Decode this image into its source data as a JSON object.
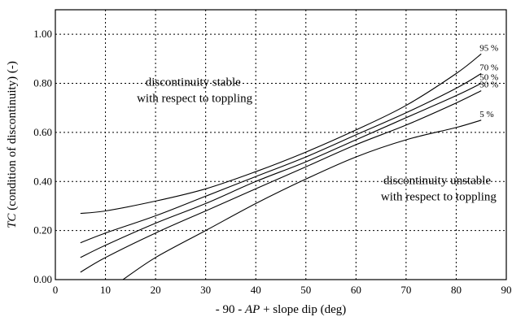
{
  "chart_data": {
    "type": "line",
    "xlabel_prefix": "- 90 - ",
    "xlabel_var": "AP",
    "xlabel_suffix": " + slope dip (deg)",
    "ylabel_var": "TC",
    "ylabel_rest": " (condition of discontinuity) (-)",
    "xlim": [
      0,
      90
    ],
    "ylim": [
      0,
      1.1
    ],
    "x_ticks": [
      0,
      10,
      20,
      30,
      40,
      50,
      60,
      70,
      80,
      90
    ],
    "x_tick_labels": [
      "0",
      "10",
      "20",
      "30",
      "40",
      "50",
      "60",
      "70",
      "80",
      "90"
    ],
    "y_ticks": [
      0,
      0.2,
      0.4,
      0.6,
      0.8,
      1.0
    ],
    "y_tick_labels": [
      "0.00",
      "0.20",
      "0.40",
      "0.60",
      "0.80",
      "1.00"
    ],
    "grid": true,
    "region_labels": {
      "stable": [
        "discontinuity stable",
        "with respect to toppling"
      ],
      "unstable": [
        "discontinuity unstable",
        "with respect to toppling"
      ]
    },
    "series": [
      {
        "name": "95 %",
        "x": [
          5,
          10,
          20,
          30,
          40,
          50,
          60,
          70,
          80,
          85
        ],
        "y": [
          0.27,
          0.28,
          0.32,
          0.37,
          0.44,
          0.52,
          0.61,
          0.71,
          0.84,
          0.92
        ]
      },
      {
        "name": "70 %",
        "x": [
          5,
          10,
          20,
          30,
          40,
          50,
          60,
          70,
          80,
          85
        ],
        "y": [
          0.15,
          0.19,
          0.26,
          0.34,
          0.42,
          0.5,
          0.59,
          0.68,
          0.78,
          0.84
        ]
      },
      {
        "name": "50 %",
        "x": [
          5,
          10,
          20,
          30,
          40,
          50,
          60,
          70,
          80,
          85
        ],
        "y": [
          0.09,
          0.14,
          0.23,
          0.31,
          0.4,
          0.48,
          0.57,
          0.66,
          0.75,
          0.8
        ]
      },
      {
        "name": "30 %",
        "x": [
          5,
          10,
          20,
          30,
          40,
          50,
          60,
          70,
          80,
          85
        ],
        "y": [
          0.03,
          0.09,
          0.19,
          0.28,
          0.37,
          0.46,
          0.55,
          0.63,
          0.72,
          0.77
        ]
      },
      {
        "name": "5 %",
        "x": [
          13.5,
          20,
          30,
          40,
          50,
          60,
          70,
          80,
          85
        ],
        "y": [
          0.0,
          0.09,
          0.2,
          0.31,
          0.41,
          0.5,
          0.57,
          0.62,
          0.65
        ]
      }
    ]
  }
}
